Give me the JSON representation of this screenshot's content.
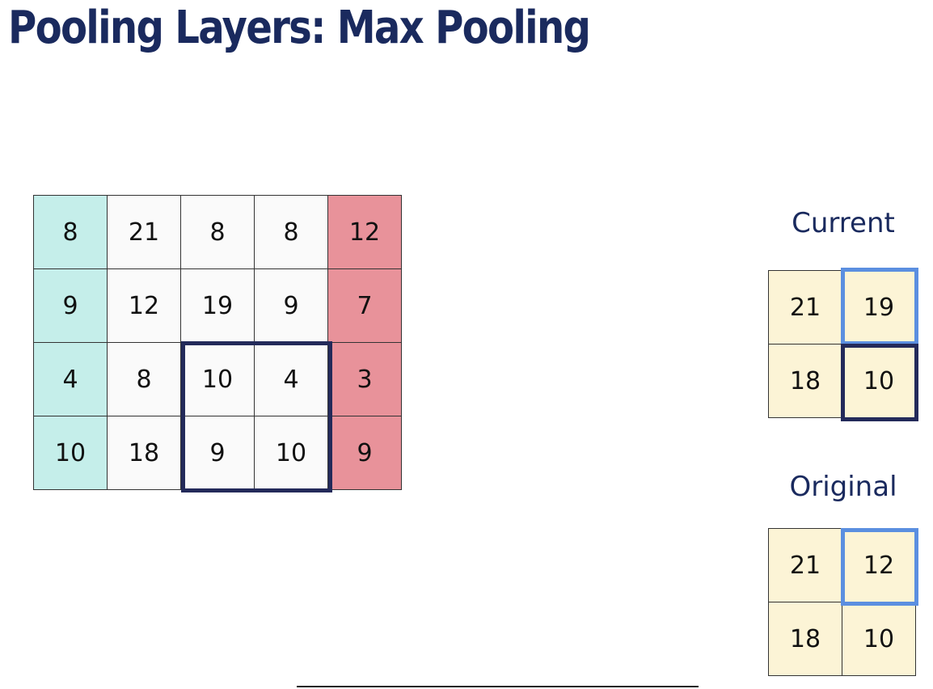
{
  "title": "Pooling Layers: Max Pooling",
  "input_grid": {
    "rows": [
      [
        "8",
        "21",
        "8",
        "8",
        "12"
      ],
      [
        "9",
        "12",
        "19",
        "9",
        "7"
      ],
      [
        "4",
        "8",
        "10",
        "4",
        "3"
      ],
      [
        "10",
        "18",
        "9",
        "10",
        "9"
      ]
    ]
  },
  "current": {
    "label": "Current",
    "rows": [
      [
        "21",
        "19"
      ],
      [
        "18",
        "10"
      ]
    ]
  },
  "original": {
    "label": "Original",
    "rows": [
      [
        "21",
        "12"
      ],
      [
        "18",
        "10"
      ]
    ]
  },
  "colors": {
    "title": "#1a2a5e",
    "first_column": "#c5eeea",
    "last_column": "#e8929a",
    "output_cells": "#fcf4d6",
    "window_border": "#232a5a",
    "highlight_border": "#5b8fe0"
  }
}
